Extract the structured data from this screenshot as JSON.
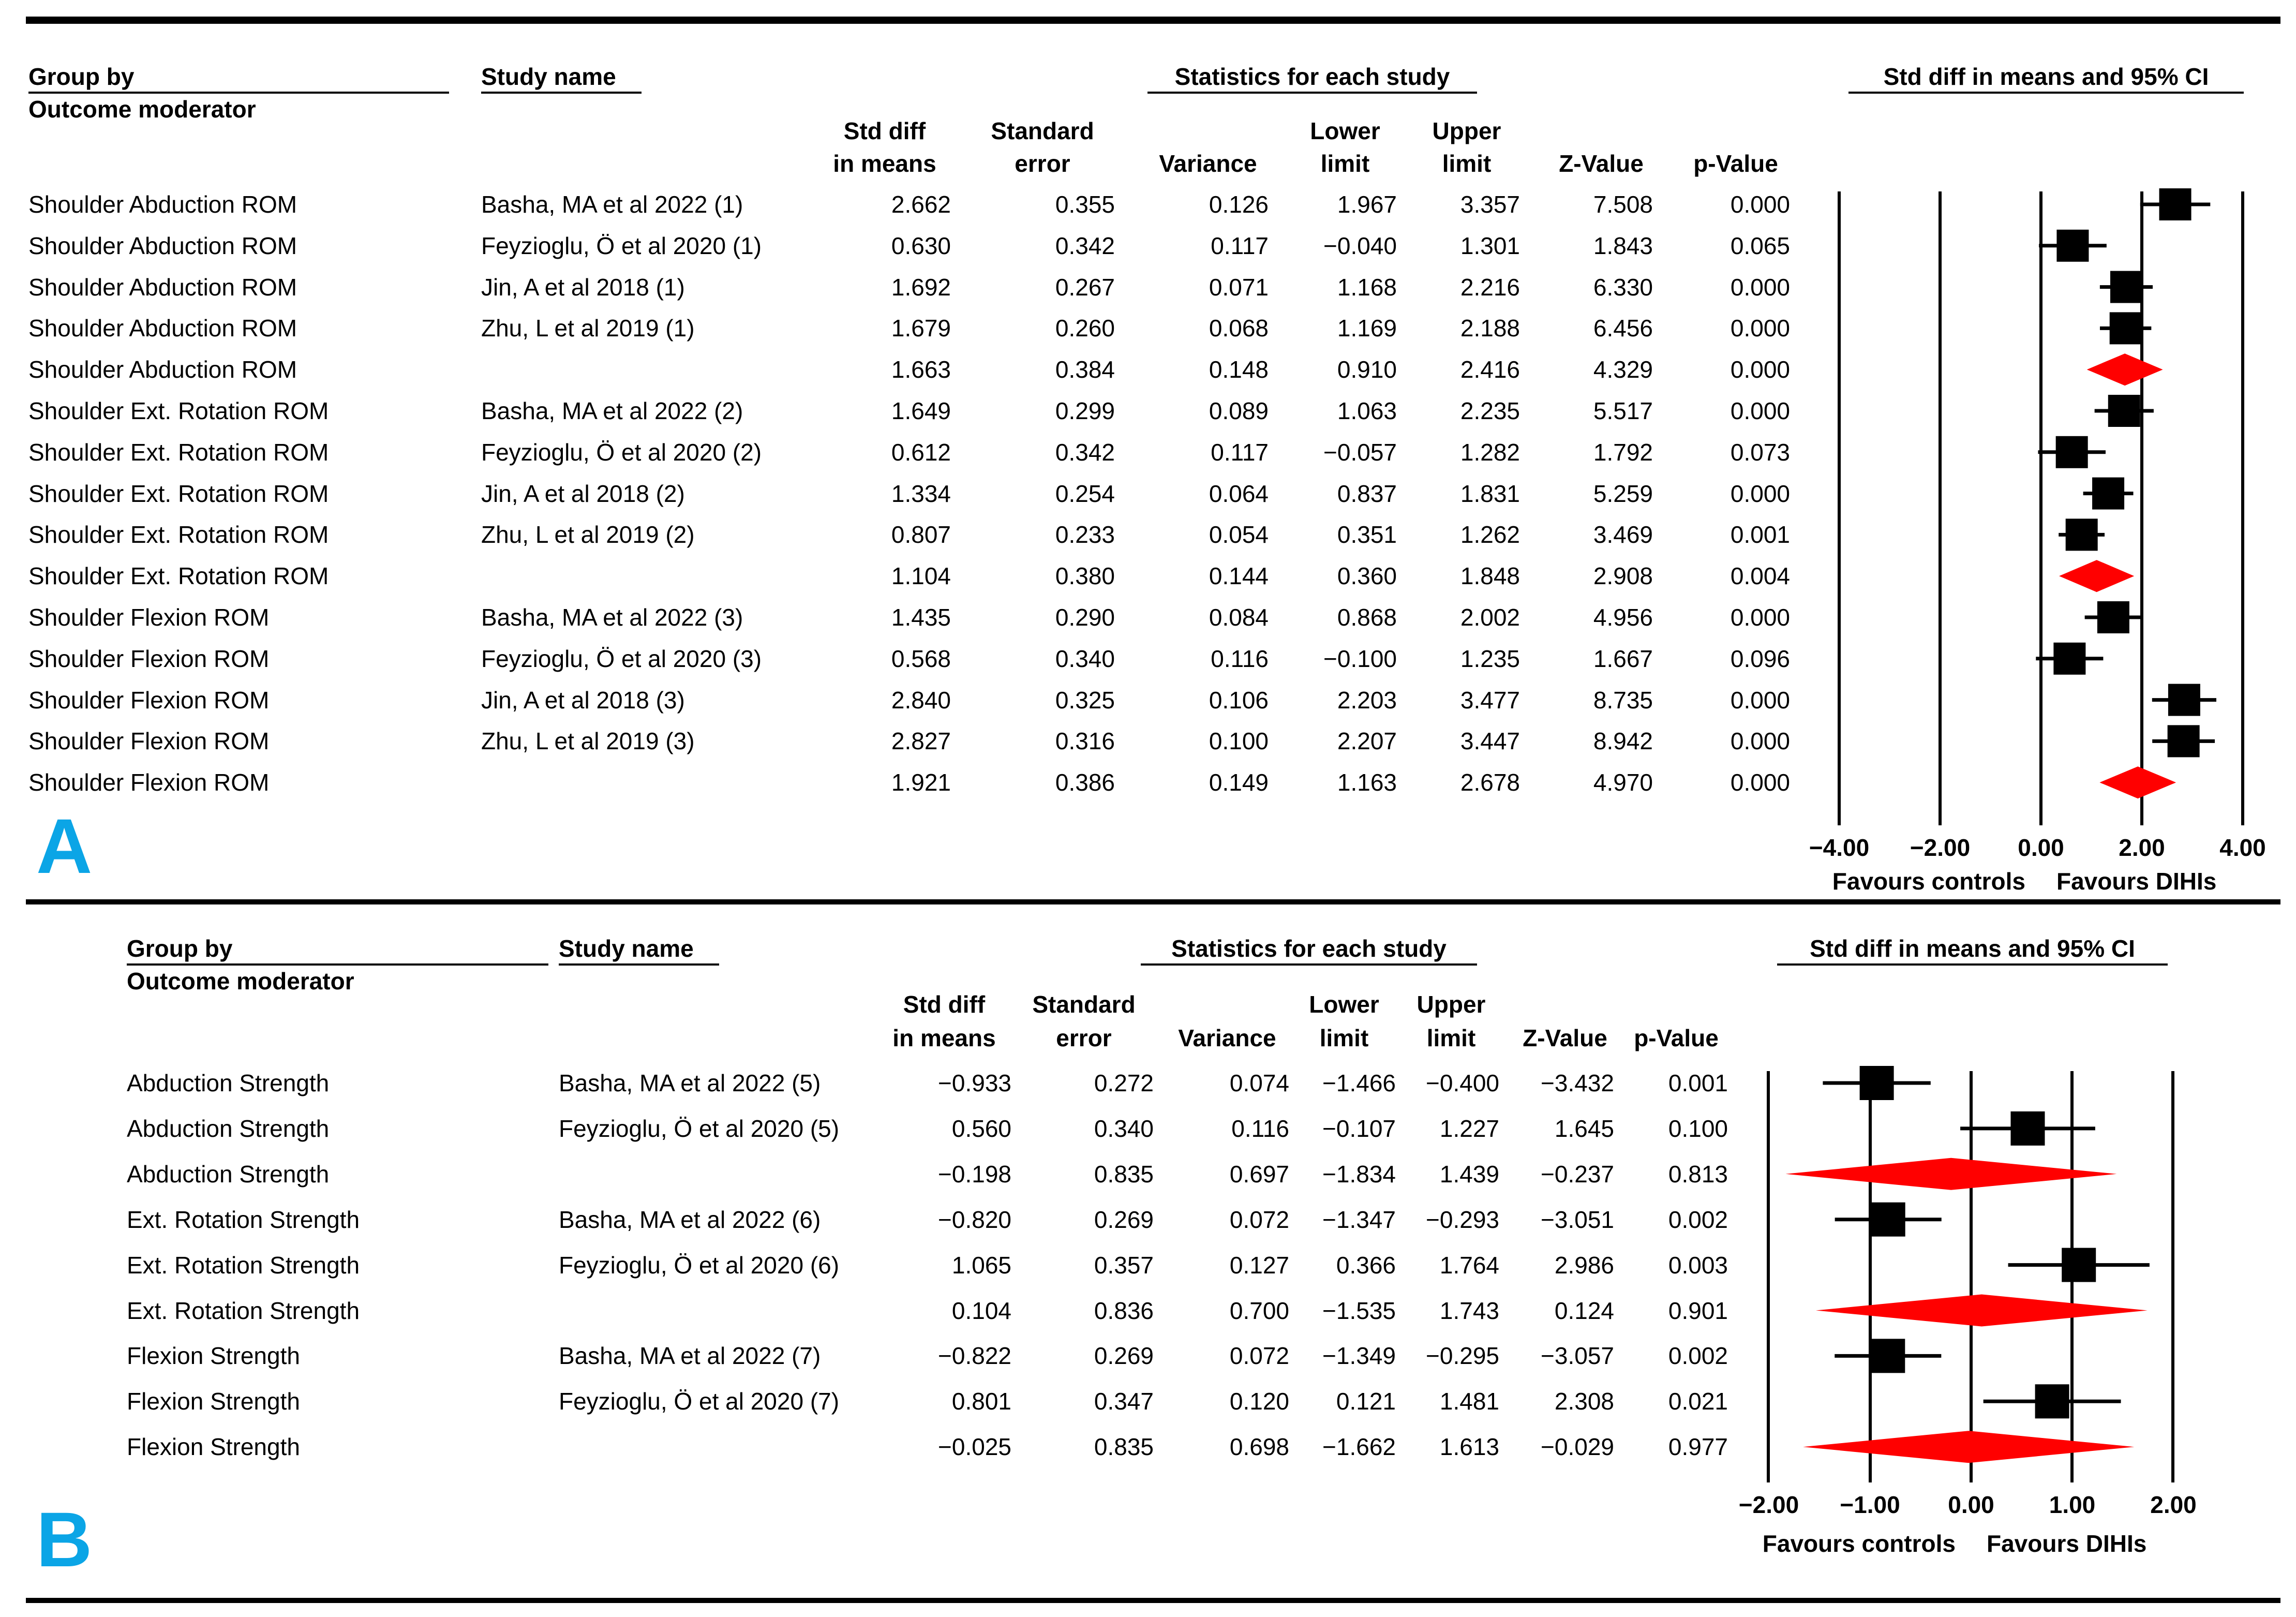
{
  "colors": {
    "panel_label": "#0ba5e6",
    "diamond": "#ff0000",
    "marker": "#000000"
  },
  "chart_data": [
    {
      "type": "forest",
      "panel": "A",
      "headers": {
        "group_by": "Group by",
        "outcome_moderator": "Outcome moderator",
        "study_name": "Study name",
        "stats_title": "Statistics for each study",
        "ci_title": "Std diff in means and 95% CI",
        "col_smd_1": "Std diff",
        "col_smd_2": "in means",
        "col_se_1": "Standard",
        "col_se_2": "error",
        "col_var": "Variance",
        "col_lower_1": "Lower",
        "col_lower_2": "limit",
        "col_upper_1": "Upper",
        "col_upper_2": "limit",
        "col_z": "Z-Value",
        "col_p": "p-Value"
      },
      "axis": {
        "min": -4,
        "max": 4,
        "ticks": [
          "−4.00",
          "−2.00",
          "0.00",
          "2.00",
          "4.00"
        ],
        "tick_values": [
          -4,
          -2,
          0,
          2,
          4
        ],
        "label_left": "Favours controls",
        "label_right": "Favours DIHIs"
      },
      "rows": [
        {
          "group": "Shoulder Abduction ROM",
          "study": "Basha, MA et al 2022 (1)",
          "smd": "2.662",
          "se": "0.355",
          "var": "0.126",
          "lower": "1.967",
          "upper": "3.357",
          "z": "7.508",
          "p": "0.000",
          "summary": false
        },
        {
          "group": "Shoulder Abduction ROM",
          "study": "Feyzioglu, Ö et al 2020 (1)",
          "smd": "0.630",
          "se": "0.342",
          "var": "0.117",
          "lower": "−0.040",
          "upper": "1.301",
          "z": "1.843",
          "p": "0.065",
          "summary": false
        },
        {
          "group": "Shoulder Abduction ROM",
          "study": "Jin, A et al 2018 (1)",
          "smd": "1.692",
          "se": "0.267",
          "var": "0.071",
          "lower": "1.168",
          "upper": "2.216",
          "z": "6.330",
          "p": "0.000",
          "summary": false
        },
        {
          "group": "Shoulder Abduction ROM",
          "study": "Zhu, L et al 2019 (1)",
          "smd": "1.679",
          "se": "0.260",
          "var": "0.068",
          "lower": "1.169",
          "upper": "2.188",
          "z": "6.456",
          "p": "0.000",
          "summary": false
        },
        {
          "group": "Shoulder Abduction ROM",
          "study": "",
          "smd": "1.663",
          "se": "0.384",
          "var": "0.148",
          "lower": "0.910",
          "upper": "2.416",
          "z": "4.329",
          "p": "0.000",
          "summary": true
        },
        {
          "group": "Shoulder Ext. Rotation ROM",
          "study": "Basha, MA et al 2022 (2)",
          "smd": "1.649",
          "se": "0.299",
          "var": "0.089",
          "lower": "1.063",
          "upper": "2.235",
          "z": "5.517",
          "p": "0.000",
          "summary": false
        },
        {
          "group": "Shoulder Ext. Rotation ROM",
          "study": "Feyzioglu, Ö et al 2020 (2)",
          "smd": "0.612",
          "se": "0.342",
          "var": "0.117",
          "lower": "−0.057",
          "upper": "1.282",
          "z": "1.792",
          "p": "0.073",
          "summary": false
        },
        {
          "group": "Shoulder Ext. Rotation ROM",
          "study": "Jin, A et al 2018 (2)",
          "smd": "1.334",
          "se": "0.254",
          "var": "0.064",
          "lower": "0.837",
          "upper": "1.831",
          "z": "5.259",
          "p": "0.000",
          "summary": false
        },
        {
          "group": "Shoulder Ext. Rotation ROM",
          "study": "Zhu, L et al 2019 (2)",
          "smd": "0.807",
          "se": "0.233",
          "var": "0.054",
          "lower": "0.351",
          "upper": "1.262",
          "z": "3.469",
          "p": "0.001",
          "summary": false
        },
        {
          "group": "Shoulder Ext. Rotation ROM",
          "study": "",
          "smd": "1.104",
          "se": "0.380",
          "var": "0.144",
          "lower": "0.360",
          "upper": "1.848",
          "z": "2.908",
          "p": "0.004",
          "summary": true
        },
        {
          "group": "Shoulder Flexion ROM",
          "study": "Basha, MA et al 2022 (3)",
          "smd": "1.435",
          "se": "0.290",
          "var": "0.084",
          "lower": "0.868",
          "upper": "2.002",
          "z": "4.956",
          "p": "0.000",
          "summary": false
        },
        {
          "group": "Shoulder Flexion ROM",
          "study": "Feyzioglu, Ö et al 2020 (3)",
          "smd": "0.568",
          "se": "0.340",
          "var": "0.116",
          "lower": "−0.100",
          "upper": "1.235",
          "z": "1.667",
          "p": "0.096",
          "summary": false
        },
        {
          "group": "Shoulder Flexion ROM",
          "study": "Jin, A et al 2018 (3)",
          "smd": "2.840",
          "se": "0.325",
          "var": "0.106",
          "lower": "2.203",
          "upper": "3.477",
          "z": "8.735",
          "p": "0.000",
          "summary": false
        },
        {
          "group": "Shoulder Flexion ROM",
          "study": "Zhu, L et al 2019 (3)",
          "smd": "2.827",
          "se": "0.316",
          "var": "0.100",
          "lower": "2.207",
          "upper": "3.447",
          "z": "8.942",
          "p": "0.000",
          "summary": false
        },
        {
          "group": "Shoulder Flexion ROM",
          "study": "",
          "smd": "1.921",
          "se": "0.386",
          "var": "0.149",
          "lower": "1.163",
          "upper": "2.678",
          "z": "4.970",
          "p": "0.000",
          "summary": true
        }
      ]
    },
    {
      "type": "forest",
      "panel": "B",
      "headers": {
        "group_by": "Group by",
        "outcome_moderator": "Outcome moderator",
        "study_name": "Study name",
        "stats_title": "Statistics for each study",
        "ci_title": "Std diff in means and 95% CI",
        "col_smd_1": "Std diff",
        "col_smd_2": "in means",
        "col_se_1": "Standard",
        "col_se_2": "error",
        "col_var": "Variance",
        "col_lower_1": "Lower",
        "col_lower_2": "limit",
        "col_upper_1": "Upper",
        "col_upper_2": "limit",
        "col_z": "Z-Value",
        "col_p": "p-Value"
      },
      "axis": {
        "min": -2,
        "max": 2,
        "ticks": [
          "−2.00",
          "−1.00",
          "0.00",
          "1.00",
          "2.00"
        ],
        "tick_values": [
          -2,
          -1,
          0,
          1,
          2
        ],
        "label_left": "Favours controls",
        "label_right": "Favours DIHIs"
      },
      "rows": [
        {
          "group": "Abduction Strength",
          "study": "Basha, MA et al 2022  (5)",
          "smd": "−0.933",
          "se": "0.272",
          "var": "0.074",
          "lower": "−1.466",
          "upper": "−0.400",
          "z": "−3.432",
          "p": "0.001",
          "summary": false
        },
        {
          "group": "Abduction Strength",
          "study": "Feyzioglu, Ö et al 2020 (5)",
          "smd": "0.560",
          "se": "0.340",
          "var": "0.116",
          "lower": "−0.107",
          "upper": "1.227",
          "z": "1.645",
          "p": "0.100",
          "summary": false
        },
        {
          "group": "Abduction Strength",
          "study": "",
          "smd": "−0.198",
          "se": "0.835",
          "var": "0.697",
          "lower": "−1.834",
          "upper": "1.439",
          "z": "−0.237",
          "p": "0.813",
          "summary": true
        },
        {
          "group": "Ext. Rotation Strength",
          "study": "Basha, MA et al 2022  (6)",
          "smd": "−0.820",
          "se": "0.269",
          "var": "0.072",
          "lower": "−1.347",
          "upper": "−0.293",
          "z": "−3.051",
          "p": "0.002",
          "summary": false
        },
        {
          "group": "Ext. Rotation Strength",
          "study": "Feyzioglu, Ö et al 2020 (6)",
          "smd": "1.065",
          "se": "0.357",
          "var": "0.127",
          "lower": "0.366",
          "upper": "1.764",
          "z": "2.986",
          "p": "0.003",
          "summary": false
        },
        {
          "group": "Ext. Rotation Strength",
          "study": "",
          "smd": "0.104",
          "se": "0.836",
          "var": "0.700",
          "lower": "−1.535",
          "upper": "1.743",
          "z": "0.124",
          "p": "0.901",
          "summary": true
        },
        {
          "group": "Flexion Strength",
          "study": "Basha, MA et al 2022  (7)",
          "smd": "−0.822",
          "se": "0.269",
          "var": "0.072",
          "lower": "−1.349",
          "upper": "−0.295",
          "z": "−3.057",
          "p": "0.002",
          "summary": false
        },
        {
          "group": "Flexion Strength",
          "study": "Feyzioglu, Ö et al 2020 (7)",
          "smd": "0.801",
          "se": "0.347",
          "var": "0.120",
          "lower": "0.121",
          "upper": "1.481",
          "z": "2.308",
          "p": "0.021",
          "summary": false
        },
        {
          "group": "Flexion Strength",
          "study": "",
          "smd": "−0.025",
          "se": "0.835",
          "var": "0.698",
          "lower": "−1.662",
          "upper": "1.613",
          "z": "−0.029",
          "p": "0.977",
          "summary": true
        }
      ]
    }
  ]
}
